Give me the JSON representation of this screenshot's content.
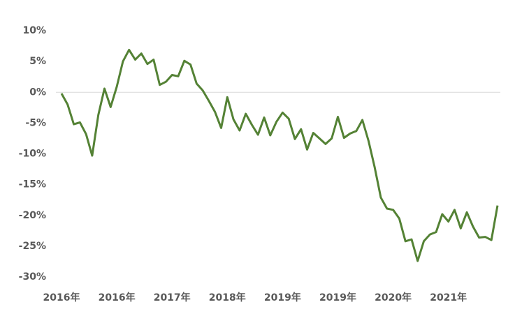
{
  "chart_data": {
    "type": "line",
    "categories": [
      "2016年",
      null,
      null,
      null,
      null,
      null,
      null,
      null,
      null,
      "2016年",
      null,
      null,
      null,
      null,
      null,
      null,
      null,
      null,
      "2017年",
      null,
      null,
      null,
      null,
      null,
      null,
      null,
      null,
      "2018年",
      null,
      null,
      null,
      null,
      null,
      null,
      null,
      null,
      "2019年",
      null,
      null,
      null,
      null,
      null,
      null,
      null,
      null,
      "2019年",
      null,
      null,
      null,
      null,
      null,
      null,
      null,
      null,
      "2020年",
      null,
      null,
      null,
      null,
      null,
      null,
      null,
      null,
      "2021年",
      null,
      null,
      null,
      null,
      null,
      null,
      null,
      null
    ],
    "series": [
      {
        "color": "#548235",
        "values": [
          -0.2,
          -2,
          -5.2,
          -4.9,
          -6.8,
          -10.3,
          -3.7,
          0.6,
          -2.4,
          0.9,
          5,
          6.9,
          5.3,
          6.3,
          4.6,
          5.3,
          1.2,
          1.7,
          2.8,
          2.6,
          5.1,
          4.5,
          1.4,
          0.3,
          -1.4,
          -3.2,
          -5.8,
          -0.8,
          -4.4,
          -6.2,
          -3.5,
          -5.3,
          -6.9,
          -4.1,
          -7,
          -4.8,
          -3.3,
          -4.3,
          -7.6,
          -6,
          -9.3,
          -6.6,
          -7.5,
          -8.4,
          -7.5,
          -4,
          -7.4,
          -6.7,
          -6.3,
          -4.5,
          -7.9,
          -12.2,
          -17.1,
          -18.9,
          -19.1,
          -20.5,
          -24.2,
          -23.9,
          -27.4,
          -24.2,
          -23.1,
          -22.7,
          -19.8,
          -21,
          -19.1,
          -22.1,
          -19.5,
          -21.8,
          -23.6,
          -23.5,
          -24,
          -18.4
        ]
      }
    ],
    "ylim": [
      -30,
      10
    ],
    "yticks": [
      {
        "value": -30,
        "label": "-30%"
      },
      {
        "value": -25,
        "label": "-25%"
      },
      {
        "value": -20,
        "label": "-20%"
      },
      {
        "value": -15,
        "label": "-15%"
      },
      {
        "value": -10,
        "label": "-10%"
      },
      {
        "value": -5,
        "label": "-5%"
      },
      {
        "value": 0,
        "label": "0%"
      },
      {
        "value": 5,
        "label": "5%"
      },
      {
        "value": 10,
        "label": "10%"
      }
    ]
  }
}
